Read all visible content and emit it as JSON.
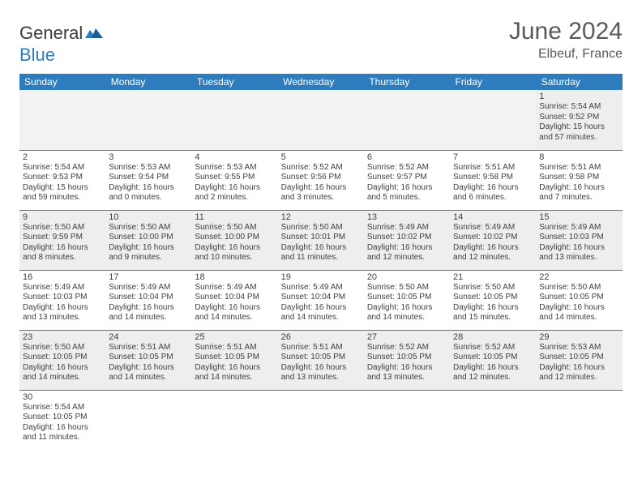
{
  "logo": {
    "general": "Genera",
    "l": "l",
    "blue": "Blue"
  },
  "title": "June 2024",
  "location": "Elbeuf, France",
  "header_bg": "#2e7cbe",
  "header_fg": "#ffffff",
  "shade_bg": "#eeeeee",
  "rule_color": "#2e7cbe",
  "daynames": [
    "Sunday",
    "Monday",
    "Tuesday",
    "Wednesday",
    "Thursday",
    "Friday",
    "Saturday"
  ],
  "weeks": [
    [
      null,
      null,
      null,
      null,
      null,
      null,
      {
        "n": "1",
        "sr": "Sunrise: 5:54 AM",
        "ss": "Sunset: 9:52 PM",
        "dl": "Daylight: 15 hours and 57 minutes."
      }
    ],
    [
      {
        "n": "2",
        "sr": "Sunrise: 5:54 AM",
        "ss": "Sunset: 9:53 PM",
        "dl": "Daylight: 15 hours and 59 minutes."
      },
      {
        "n": "3",
        "sr": "Sunrise: 5:53 AM",
        "ss": "Sunset: 9:54 PM",
        "dl": "Daylight: 16 hours and 0 minutes."
      },
      {
        "n": "4",
        "sr": "Sunrise: 5:53 AM",
        "ss": "Sunset: 9:55 PM",
        "dl": "Daylight: 16 hours and 2 minutes."
      },
      {
        "n": "5",
        "sr": "Sunrise: 5:52 AM",
        "ss": "Sunset: 9:56 PM",
        "dl": "Daylight: 16 hours and 3 minutes."
      },
      {
        "n": "6",
        "sr": "Sunrise: 5:52 AM",
        "ss": "Sunset: 9:57 PM",
        "dl": "Daylight: 16 hours and 5 minutes."
      },
      {
        "n": "7",
        "sr": "Sunrise: 5:51 AM",
        "ss": "Sunset: 9:58 PM",
        "dl": "Daylight: 16 hours and 6 minutes."
      },
      {
        "n": "8",
        "sr": "Sunrise: 5:51 AM",
        "ss": "Sunset: 9:58 PM",
        "dl": "Daylight: 16 hours and 7 minutes."
      }
    ],
    [
      {
        "n": "9",
        "sr": "Sunrise: 5:50 AM",
        "ss": "Sunset: 9:59 PM",
        "dl": "Daylight: 16 hours and 8 minutes."
      },
      {
        "n": "10",
        "sr": "Sunrise: 5:50 AM",
        "ss": "Sunset: 10:00 PM",
        "dl": "Daylight: 16 hours and 9 minutes."
      },
      {
        "n": "11",
        "sr": "Sunrise: 5:50 AM",
        "ss": "Sunset: 10:00 PM",
        "dl": "Daylight: 16 hours and 10 minutes."
      },
      {
        "n": "12",
        "sr": "Sunrise: 5:50 AM",
        "ss": "Sunset: 10:01 PM",
        "dl": "Daylight: 16 hours and 11 minutes."
      },
      {
        "n": "13",
        "sr": "Sunrise: 5:49 AM",
        "ss": "Sunset: 10:02 PM",
        "dl": "Daylight: 16 hours and 12 minutes."
      },
      {
        "n": "14",
        "sr": "Sunrise: 5:49 AM",
        "ss": "Sunset: 10:02 PM",
        "dl": "Daylight: 16 hours and 12 minutes."
      },
      {
        "n": "15",
        "sr": "Sunrise: 5:49 AM",
        "ss": "Sunset: 10:03 PM",
        "dl": "Daylight: 16 hours and 13 minutes."
      }
    ],
    [
      {
        "n": "16",
        "sr": "Sunrise: 5:49 AM",
        "ss": "Sunset: 10:03 PM",
        "dl": "Daylight: 16 hours and 13 minutes."
      },
      {
        "n": "17",
        "sr": "Sunrise: 5:49 AM",
        "ss": "Sunset: 10:04 PM",
        "dl": "Daylight: 16 hours and 14 minutes."
      },
      {
        "n": "18",
        "sr": "Sunrise: 5:49 AM",
        "ss": "Sunset: 10:04 PM",
        "dl": "Daylight: 16 hours and 14 minutes."
      },
      {
        "n": "19",
        "sr": "Sunrise: 5:49 AM",
        "ss": "Sunset: 10:04 PM",
        "dl": "Daylight: 16 hours and 14 minutes."
      },
      {
        "n": "20",
        "sr": "Sunrise: 5:50 AM",
        "ss": "Sunset: 10:05 PM",
        "dl": "Daylight: 16 hours and 14 minutes."
      },
      {
        "n": "21",
        "sr": "Sunrise: 5:50 AM",
        "ss": "Sunset: 10:05 PM",
        "dl": "Daylight: 16 hours and 15 minutes."
      },
      {
        "n": "22",
        "sr": "Sunrise: 5:50 AM",
        "ss": "Sunset: 10:05 PM",
        "dl": "Daylight: 16 hours and 14 minutes."
      }
    ],
    [
      {
        "n": "23",
        "sr": "Sunrise: 5:50 AM",
        "ss": "Sunset: 10:05 PM",
        "dl": "Daylight: 16 hours and 14 minutes."
      },
      {
        "n": "24",
        "sr": "Sunrise: 5:51 AM",
        "ss": "Sunset: 10:05 PM",
        "dl": "Daylight: 16 hours and 14 minutes."
      },
      {
        "n": "25",
        "sr": "Sunrise: 5:51 AM",
        "ss": "Sunset: 10:05 PM",
        "dl": "Daylight: 16 hours and 14 minutes."
      },
      {
        "n": "26",
        "sr": "Sunrise: 5:51 AM",
        "ss": "Sunset: 10:05 PM",
        "dl": "Daylight: 16 hours and 13 minutes."
      },
      {
        "n": "27",
        "sr": "Sunrise: 5:52 AM",
        "ss": "Sunset: 10:05 PM",
        "dl": "Daylight: 16 hours and 13 minutes."
      },
      {
        "n": "28",
        "sr": "Sunrise: 5:52 AM",
        "ss": "Sunset: 10:05 PM",
        "dl": "Daylight: 16 hours and 12 minutes."
      },
      {
        "n": "29",
        "sr": "Sunrise: 5:53 AM",
        "ss": "Sunset: 10:05 PM",
        "dl": "Daylight: 16 hours and 12 minutes."
      }
    ],
    [
      {
        "n": "30",
        "sr": "Sunrise: 5:54 AM",
        "ss": "Sunset: 10:05 PM",
        "dl": "Daylight: 16 hours and 11 minutes."
      },
      null,
      null,
      null,
      null,
      null,
      null
    ]
  ]
}
